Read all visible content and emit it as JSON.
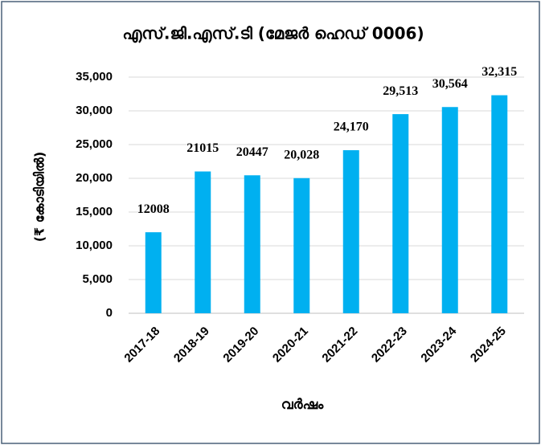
{
  "chart_data": {
    "type": "bar",
    "title": "എസ്.ജി.എസ്.ടി (മേജർ ഹെഡ്   0006)",
    "y_label": "(₹ കോടിയിൽ)",
    "x_label": "വർഷം",
    "categories": [
      "2017-18",
      "2018-19",
      "2019-20",
      "2020-21",
      "2021-22",
      "2022-23",
      "2023-24",
      "2024-25"
    ],
    "values": [
      12008,
      21015,
      20447,
      20028,
      24170,
      29513,
      30564,
      32315
    ],
    "value_labels": [
      "12008",
      "21015",
      "20447",
      "20,028",
      "24,170",
      "29,513",
      "30,564",
      "32,315"
    ],
    "color": "#00b0f0",
    "ylim": [
      0,
      35000
    ],
    "yticks": [
      0,
      {
        "value": 5000,
        "label": "5,000"
      },
      {
        "value": 10000,
        "label": "10,000"
      },
      {
        "value": 15000,
        "label": "15,000"
      },
      {
        "value": 20000,
        "label": "20,000"
      },
      {
        "value": 25000,
        "label": "25,000"
      },
      {
        "value": 30000,
        "label": "30,000"
      },
      {
        "value": 35000,
        "label": "35,000"
      }
    ],
    "grid": true
  }
}
